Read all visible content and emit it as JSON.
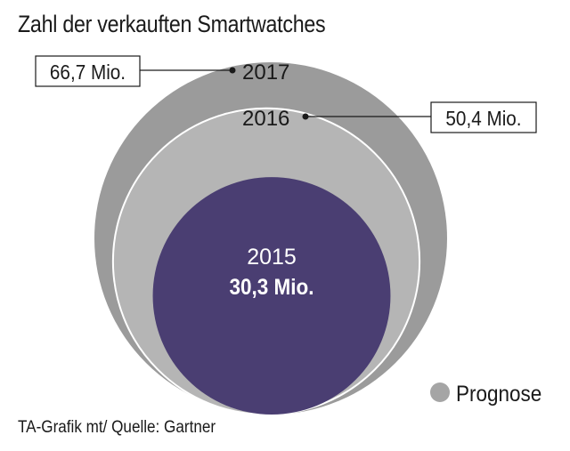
{
  "title": "Zahl der verkauften Smartwatches",
  "source": "TA-Grafik mt/ Quelle: Gartner",
  "colors": {
    "c2017": "#9b9b9b",
    "c2016": "#b5b5b5",
    "c2015": "#4a3e72",
    "prognose": "#a5a5a5",
    "line": "#1a1a1a"
  },
  "chart_data": {
    "type": "bubble",
    "unit": "Mio.",
    "series": [
      {
        "year": "2015",
        "value": 30.3,
        "value_label": "30,3 Mio.",
        "prognose": false
      },
      {
        "year": "2016",
        "value": 50.4,
        "value_label": "50,4 Mio.",
        "prognose": true
      },
      {
        "year": "2017",
        "value": 66.7,
        "value_label": "66,7 Mio.",
        "prognose": true
      }
    ],
    "legend": {
      "label": "Prognose",
      "position": "bottom-right"
    }
  }
}
